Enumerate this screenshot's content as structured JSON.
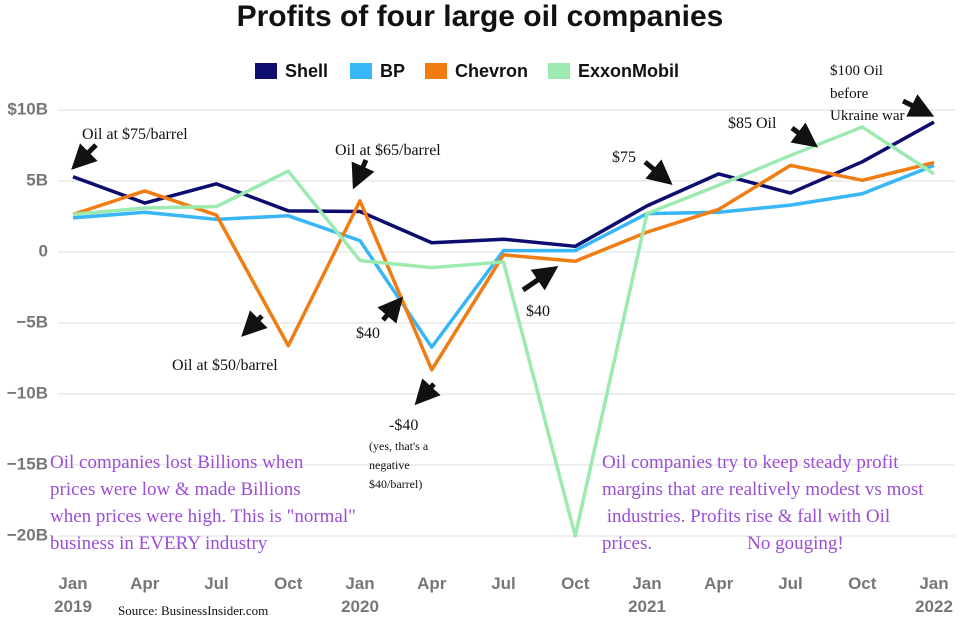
{
  "chart_data": {
    "type": "line",
    "title": "Profits of four large oil companies",
    "categories": [
      "Jan\n2019",
      "Apr",
      "Jul",
      "Oct",
      "Jan\n2020",
      "Apr",
      "Jul",
      "Oct",
      "Jan\n2021",
      "Apr",
      "Jul",
      "Oct",
      "Jan\n2022"
    ],
    "series": [
      {
        "name": "Shell",
        "color": "#0c0d6e",
        "values": [
          5.3,
          3.45,
          4.8,
          2.9,
          2.85,
          0.65,
          0.9,
          0.4,
          3.25,
          5.5,
          4.15,
          6.35,
          9.15
        ]
      },
      {
        "name": "BP",
        "color": "#38b6f5",
        "values": [
          2.4,
          2.8,
          2.3,
          2.55,
          0.8,
          -6.7,
          0.1,
          0.1,
          2.7,
          2.8,
          3.3,
          4.1,
          6.1
        ]
      },
      {
        "name": "Chevron",
        "color": "#f07c12",
        "values": [
          2.65,
          4.3,
          2.6,
          -6.6,
          3.6,
          -8.3,
          -0.2,
          -0.65,
          1.4,
          3.0,
          6.1,
          5.05,
          6.3
        ]
      },
      {
        "name": "ExxonMobil",
        "color": "#9ceab0",
        "values": [
          2.65,
          3.1,
          3.2,
          5.7,
          -0.6,
          -1.1,
          -0.7,
          -20,
          2.7,
          4.7,
          6.8,
          8.8,
          5.5
        ]
      }
    ],
    "ylim": [
      -20,
      10
    ],
    "yticks": [
      {
        "value": -20,
        "label": "−20B"
      },
      {
        "value": -15,
        "label": "−15B"
      },
      {
        "value": -10,
        "label": "−10B"
      },
      {
        "value": -5,
        "label": "−5B"
      },
      0,
      {
        "value": 5,
        "label": "5B"
      },
      {
        "value": 10,
        "label": "$10B"
      }
    ],
    "grid": true,
    "legend": "top",
    "annotations": [
      "Oil at $75/barrel",
      "Oil at $65/barrel",
      "Oil at $50/barrel",
      "$40",
      "$40",
      "-$40",
      "(yes, that's a\nnegative\n$40/barrel)",
      "$75",
      "$85 Oil",
      "$100 Oil\nbefore\nUkraine war",
      "Oil companies lost Billions when\nprices were low & made Billions\nwhen prices were high. This is \"normal\"\nbusiness in EVERY industry",
      "Oil companies try to keep steady profit\nmargins that are realtively modest vs most\n industries. Profits rise & fall with Oil\nprices.                    No gouging!"
    ],
    "source": "Source: BusinessInsider.com"
  }
}
